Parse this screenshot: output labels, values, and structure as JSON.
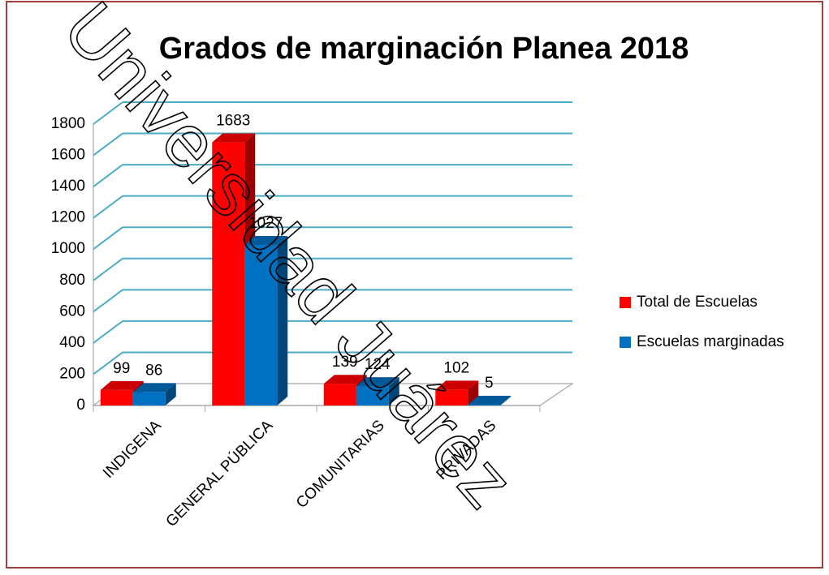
{
  "chart_data": {
    "type": "bar3d",
    "title": "Grados de marginación Planea 2018",
    "categories": [
      "INDIGENA",
      "GENERAL PÚBLICA",
      "COMUNITARIAS",
      "PRIVADAS"
    ],
    "series": [
      {
        "name": "Total de Escuelas",
        "color": "#ff0000",
        "values": [
          99,
          1683,
          139,
          102
        ]
      },
      {
        "name": "Escuelas marginadas",
        "color": "#0070c0",
        "values": [
          86,
          1027,
          124,
          5
        ]
      }
    ],
    "ylim": [
      0,
      1800
    ],
    "yticks": [
      0,
      200,
      400,
      600,
      800,
      1000,
      1200,
      1400,
      1600,
      1800
    ],
    "grid": true,
    "legend": "right",
    "watermark": "Universidad Juárez"
  }
}
